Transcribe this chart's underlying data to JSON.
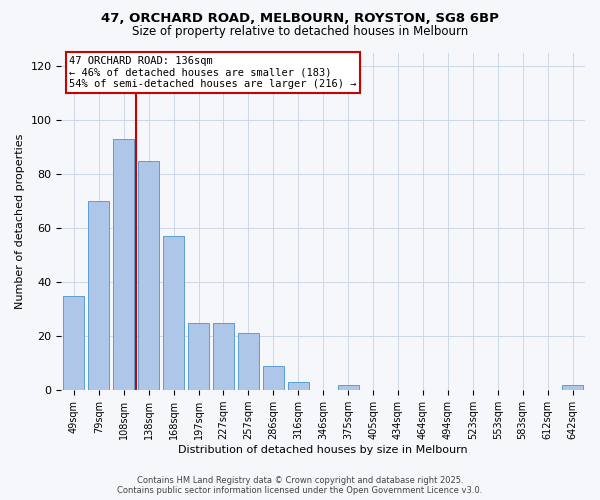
{
  "title_line1": "47, ORCHARD ROAD, MELBOURN, ROYSTON, SG8 6BP",
  "title_line2": "Size of property relative to detached houses in Melbourn",
  "xlabel": "Distribution of detached houses by size in Melbourn",
  "ylabel": "Number of detached properties",
  "bar_labels": [
    "49sqm",
    "79sqm",
    "108sqm",
    "138sqm",
    "168sqm",
    "197sqm",
    "227sqm",
    "257sqm",
    "286sqm",
    "316sqm",
    "346sqm",
    "375sqm",
    "405sqm",
    "434sqm",
    "464sqm",
    "494sqm",
    "523sqm",
    "553sqm",
    "583sqm",
    "612sqm",
    "642sqm"
  ],
  "bar_values": [
    35,
    70,
    93,
    85,
    57,
    25,
    25,
    21,
    9,
    3,
    0,
    2,
    0,
    0,
    0,
    0,
    0,
    0,
    0,
    0,
    2
  ],
  "bar_color": "#aec6e8",
  "bar_edge_color": "#5a9fd4",
  "vline_x": 2.5,
  "vline_color": "#cc0000",
  "ylim": [
    0,
    125
  ],
  "yticks": [
    0,
    20,
    40,
    60,
    80,
    100,
    120
  ],
  "annotation_title": "47 ORCHARD ROAD: 136sqm",
  "annotation_line2": "← 46% of detached houses are smaller (183)",
  "annotation_line3": "54% of semi-detached houses are larger (216) →",
  "annotation_box_color": "#ffffff",
  "annotation_box_edge_color": "#cc0000",
  "footer_line1": "Contains HM Land Registry data © Crown copyright and database right 2025.",
  "footer_line2": "Contains public sector information licensed under the Open Government Licence v3.0.",
  "background_color": "#f5f7fa",
  "grid_color": "#ccd8e8"
}
